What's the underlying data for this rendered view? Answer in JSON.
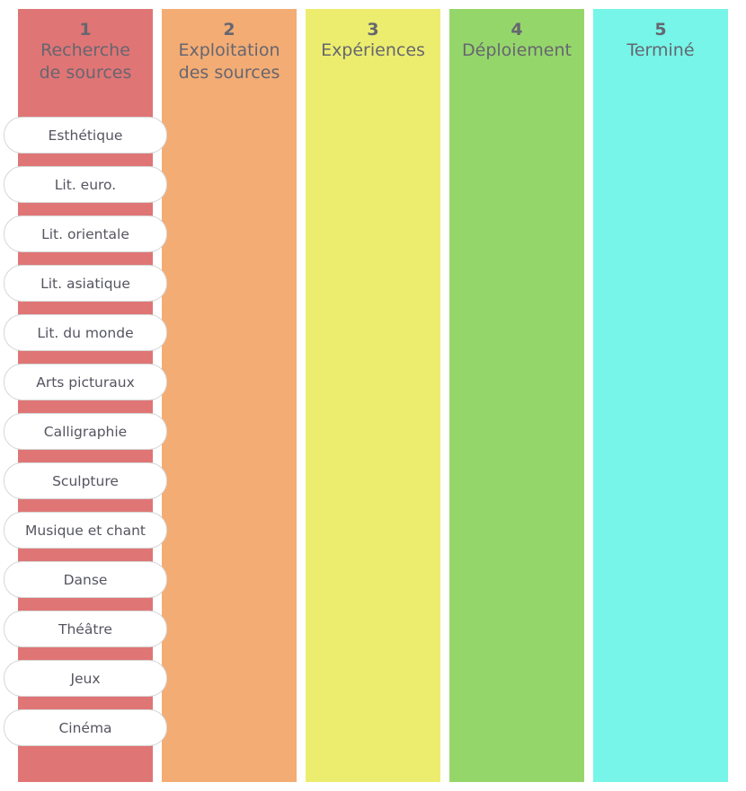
{
  "board": {
    "columns": [
      {
        "number": "1",
        "title_line1": "Recherche",
        "title_line2": "de sources",
        "color": "#e07575"
      },
      {
        "number": "2",
        "title_line1": "Exploitation",
        "title_line2": "des sources",
        "color": "#f3ac74"
      },
      {
        "number": "3",
        "title_line1": "Expériences",
        "title_line2": "",
        "color": "#eced6e"
      },
      {
        "number": "4",
        "title_line1": "Déploiement",
        "title_line2": "",
        "color": "#95d66a"
      },
      {
        "number": "5",
        "title_line1": "Terminé",
        "title_line2": "",
        "color": "#76f5e8"
      }
    ],
    "cards": [
      {
        "label": "Esthétique"
      },
      {
        "label": "Lit. euro."
      },
      {
        "label": "Lit. orientale"
      },
      {
        "label": "Lit. asiatique"
      },
      {
        "label": "Lit. du monde"
      },
      {
        "label": "Arts picturaux"
      },
      {
        "label": "Calligraphie"
      },
      {
        "label": "Sculpture"
      },
      {
        "label": "Musique et chant"
      },
      {
        "label": "Danse"
      },
      {
        "label": "Théâtre"
      },
      {
        "label": "Jeux"
      },
      {
        "label": "Cinéma"
      }
    ]
  }
}
